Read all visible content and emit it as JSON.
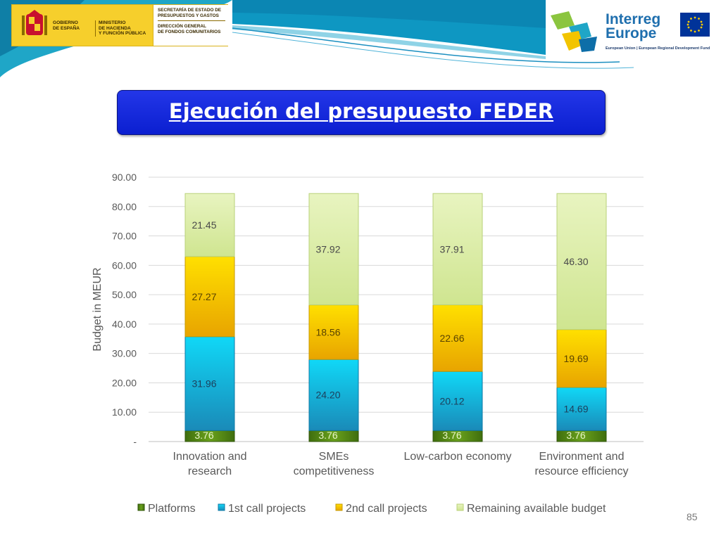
{
  "header": {
    "gov_line1": "GOBIERNO",
    "gov_line2": "DE ESPAÑA",
    "ministry_line1": "MINISTERIO",
    "ministry_line2": "DE HACIENDA",
    "ministry_line3": "Y FUNCIÓN PÚBLICA",
    "secretariat_line1": "SECRETARÍA DE ESTADO DE",
    "secretariat_line2": "PRESUPUESTOS Y GASTOS",
    "direction_line1": "DIRECCIÓN GENERAL",
    "direction_line2": "DE FONDOS COMUNITARIOS",
    "interreg_word1": "Interreg",
    "interreg_word2": "Europe",
    "interreg_sub": "European Union | European Regional Development Fund"
  },
  "slide": {
    "title": "Ejecución del presupuesto FEDER",
    "number": "85"
  },
  "chart_data": {
    "type": "bar",
    "stacked": true,
    "categories": [
      [
        "Innovation and",
        "research"
      ],
      [
        "SMEs",
        "competitiveness"
      ],
      [
        "Low-carbon economy"
      ],
      [
        "Environment and",
        "resource efficiency"
      ]
    ],
    "series": [
      {
        "name": "Platforms",
        "color": "#5a8a16",
        "values": [
          3.76,
          3.76,
          3.76,
          3.76
        ],
        "labels": [
          "3.76",
          "3.76",
          "3.76",
          "3.76"
        ]
      },
      {
        "name": "1st call projects",
        "color": "#14b4e0",
        "values": [
          31.96,
          24.2,
          20.12,
          14.69
        ],
        "labels": [
          "31.96",
          "24.20",
          "20.12",
          "14.69"
        ]
      },
      {
        "name": "2nd call projects",
        "color": "#f5c400",
        "values": [
          27.27,
          18.56,
          22.66,
          19.69
        ],
        "labels": [
          "27.27",
          "18.56",
          "22.66",
          "19.69"
        ]
      },
      {
        "name": "Remaining available budget",
        "color": "#dceea8",
        "values": [
          21.45,
          37.92,
          37.91,
          46.3
        ],
        "labels": [
          "21.45",
          "37.92",
          "37.91",
          "46.30"
        ]
      }
    ],
    "ylabel": "Budget in MEUR",
    "xlabel": "",
    "ylim": [
      0,
      90
    ],
    "yticks": [
      "-",
      "10.00",
      "20.00",
      "30.00",
      "40.00",
      "50.00",
      "60.00",
      "70.00",
      "80.00",
      "90.00"
    ],
    "grid": true,
    "legend": "bottom"
  }
}
